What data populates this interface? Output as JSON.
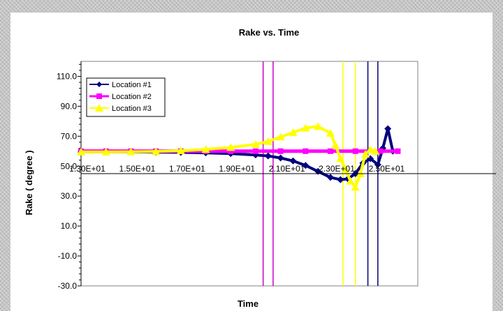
{
  "chart_data": {
    "type": "line",
    "title": "Rake vs. Time",
    "xlabel": "Time",
    "ylabel": "Rake ( degree )",
    "ylim": [
      -30,
      120
    ],
    "xlim": [
      13,
      26.5
    ],
    "y_ticks": [
      110,
      90,
      70,
      50,
      30,
      10,
      -10,
      -30
    ],
    "y_tick_labels": [
      "110.0",
      "90.0",
      "70.0",
      "50.0",
      "30.0",
      "10.0",
      "-10.0",
      "-30.0"
    ],
    "x_tick_labels": [
      "1.30E+01",
      "1.50E+01",
      "1.70E+01",
      "1.90E+01",
      "2.10E+01",
      "2.30E+01",
      "2.50E+01"
    ],
    "x_tick_values": [
      13,
      15,
      17,
      19,
      21,
      23,
      25
    ],
    "x_axis_crosses_y": 45,
    "legend_position": "top-left",
    "series": [
      {
        "name": "Location #1",
        "color": "#000080",
        "marker": "diamond",
        "x": [
          13,
          14,
          15,
          16,
          17,
          18,
          19,
          20,
          20.5,
          21,
          21.5,
          22,
          22.5,
          23,
          23.4,
          23.7,
          24.0,
          24.3,
          24.6,
          24.9,
          25.1,
          25.3,
          25.5
        ],
        "y": [
          59.5,
          59.5,
          59.5,
          59.4,
          59.2,
          58.9,
          58.4,
          57.5,
          56.8,
          55.5,
          53.5,
          50.5,
          46.5,
          42.5,
          41.0,
          41.5,
          45,
          52,
          55,
          51,
          62,
          75,
          60
        ]
      },
      {
        "name": "Location #2",
        "color": "#ff00ff",
        "marker": "square",
        "x": [
          13,
          14,
          15,
          16,
          17,
          18,
          19,
          20,
          21,
          22,
          23,
          24,
          25,
          25.7
        ],
        "y": [
          60,
          60,
          60,
          60,
          60,
          60,
          60,
          60,
          60,
          60,
          60,
          60,
          60,
          60
        ]
      },
      {
        "name": "Location #3",
        "color": "#ffff00",
        "marker": "triangle",
        "x": [
          13,
          14,
          15,
          16,
          17,
          18,
          19,
          20,
          20.5,
          21,
          21.5,
          22,
          22.5,
          23,
          23.2,
          23.4,
          23.6,
          23.8,
          24.0,
          24.2,
          24.4,
          24.6,
          24.8
        ],
        "y": [
          59.5,
          59.5,
          59.6,
          59.8,
          60.3,
          61.2,
          62.5,
          64.5,
          66.5,
          69.5,
          72.5,
          75.5,
          76.5,
          72,
          64,
          55,
          48,
          40,
          36,
          45,
          58,
          61,
          60
        ]
      }
    ],
    "vertical_lines": [
      {
        "x": 20.3,
        "color": "#cc00cc"
      },
      {
        "x": 20.7,
        "color": "#cc00cc"
      },
      {
        "x": 23.5,
        "color": "#ffff00"
      },
      {
        "x": 24.0,
        "color": "#ffff00"
      },
      {
        "x": 24.5,
        "color": "#000080"
      },
      {
        "x": 24.9,
        "color": "#000080"
      }
    ]
  }
}
